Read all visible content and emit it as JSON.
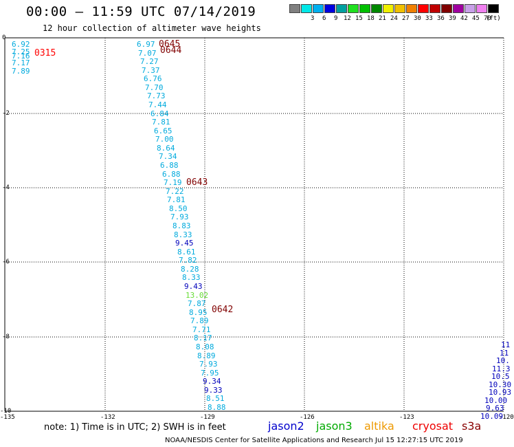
{
  "header": {
    "title": "00:00 – 11:59 UTC 07/14/2019",
    "subtitle": "12 hour collection of altimeter wave heights"
  },
  "legend": {
    "unit": "(ft)",
    "bins": [
      {
        "label": "",
        "color": "#808080"
      },
      {
        "label": "3",
        "color": "#00e8e8"
      },
      {
        "label": "6",
        "color": "#00b0f0"
      },
      {
        "label": "9",
        "color": "#0000e0"
      },
      {
        "label": "12",
        "color": "#00a0a0"
      },
      {
        "label": "15",
        "color": "#20e020"
      },
      {
        "label": "18",
        "color": "#00c000"
      },
      {
        "label": "21",
        "color": "#008800"
      },
      {
        "label": "24",
        "color": "#f0f000"
      },
      {
        "label": "27",
        "color": "#f0c000"
      },
      {
        "label": "30",
        "color": "#f08000"
      },
      {
        "label": "33",
        "color": "#ff0000"
      },
      {
        "label": "36",
        "color": "#c00000"
      },
      {
        "label": "39",
        "color": "#800000"
      },
      {
        "label": "42",
        "color": "#a000a0"
      },
      {
        "label": "45",
        "color": "#c8a0e8"
      },
      {
        "label": "70",
        "color": "#f080f0"
      },
      {
        "label": "",
        "color": "#000000"
      }
    ]
  },
  "axes": {
    "x_ticks": [
      "-135",
      "-132",
      "-129",
      "-126",
      "-123",
      "-120"
    ],
    "y_ticks": [
      "0",
      "-2",
      "-4",
      "-6",
      "-8",
      "-10"
    ]
  },
  "colors": {
    "cyan": "#00aadd",
    "blue": "#0000bb",
    "green": "#66dd33",
    "time": "#800000",
    "time_red": "#ff0000"
  },
  "tracks": {
    "left_values": [
      "6.92",
      "7.25",
      "7.16",
      "7.17",
      "7.89"
    ],
    "left_time": "0315",
    "main_values": [
      {
        "v": "6.97",
        "c": "cyan"
      },
      {
        "v": "7.07",
        "c": "cyan"
      },
      {
        "v": "7.27",
        "c": "cyan"
      },
      {
        "v": "7.37",
        "c": "cyan"
      },
      {
        "v": "6.76",
        "c": "cyan"
      },
      {
        "v": "7.70",
        "c": "cyan"
      },
      {
        "v": "7.73",
        "c": "cyan"
      },
      {
        "v": "7.44",
        "c": "cyan"
      },
      {
        "v": "6.84",
        "c": "cyan"
      },
      {
        "v": "7.81",
        "c": "cyan"
      },
      {
        "v": "6.65",
        "c": "cyan"
      },
      {
        "v": "7.00",
        "c": "cyan"
      },
      {
        "v": "8.64",
        "c": "cyan"
      },
      {
        "v": "7.34",
        "c": "cyan"
      },
      {
        "v": "6.88",
        "c": "cyan"
      },
      {
        "v": "6.88",
        "c": "cyan"
      },
      {
        "v": "7.19",
        "c": "cyan"
      },
      {
        "v": "7.22",
        "c": "cyan"
      },
      {
        "v": "7.81",
        "c": "cyan"
      },
      {
        "v": "8.50",
        "c": "cyan"
      },
      {
        "v": "7.93",
        "c": "cyan"
      },
      {
        "v": "8.83",
        "c": "cyan"
      },
      {
        "v": "8.33",
        "c": "cyan"
      },
      {
        "v": "9.45",
        "c": "blue"
      },
      {
        "v": "8.61",
        "c": "cyan"
      },
      {
        "v": "7.82",
        "c": "cyan"
      },
      {
        "v": "8.28",
        "c": "cyan"
      },
      {
        "v": "8.33",
        "c": "cyan"
      },
      {
        "v": "9.43",
        "c": "blue"
      },
      {
        "v": "13.02",
        "c": "green"
      },
      {
        "v": "7.87",
        "c": "cyan"
      },
      {
        "v": "8.95",
        "c": "cyan"
      },
      {
        "v": "7.89",
        "c": "cyan"
      },
      {
        "v": "7.71",
        "c": "cyan"
      },
      {
        "v": "8.17",
        "c": "cyan"
      },
      {
        "v": "8.08",
        "c": "cyan"
      },
      {
        "v": "8.89",
        "c": "cyan"
      },
      {
        "v": "7.93",
        "c": "cyan"
      },
      {
        "v": "7.95",
        "c": "cyan"
      },
      {
        "v": "9.34",
        "c": "blue"
      },
      {
        "v": "9.33",
        "c": "blue"
      },
      {
        "v": "8.51",
        "c": "cyan"
      },
      {
        "v": "8.88",
        "c": "cyan"
      }
    ],
    "main_times": [
      "0645",
      "0644",
      "0643",
      "0642"
    ],
    "right_values": [
      "11",
      "11",
      "10.",
      "11.3",
      "10.5",
      "10.30",
      "10.93",
      "10.00",
      "9.63",
      "10.09"
    ]
  },
  "footer": {
    "note": "note:  1) Time is in UTC;  2) SWH is in feet",
    "satellites": [
      {
        "name": "jason2",
        "color": "#0000cc"
      },
      {
        "name": "jason3",
        "color": "#00aa00"
      },
      {
        "name": "altika",
        "color": "#ee9900"
      },
      {
        "name": "cryosat",
        "color": "#ee0000"
      },
      {
        "name": "s3a",
        "color": "#880000"
      }
    ],
    "credit": "NOAA/NESDIS Center for Satellite Applications and Research     Jul 15 12:27:15 UTC 2019"
  }
}
